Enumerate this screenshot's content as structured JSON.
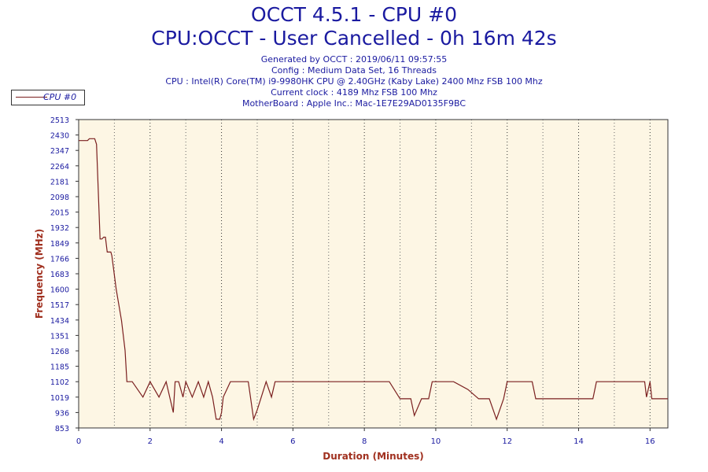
{
  "header": {
    "title": "OCCT 4.5.1 - CPU #0",
    "subtitle": "CPU:OCCT - User Cancelled - 0h 16m 42s",
    "info": [
      "Generated by OCCT : 2019/06/11 09:57:55",
      "Config : Medium Data Set, 16 Threads",
      "CPU : Intel(R) Core(TM) i9-9980HK CPU @ 2.40GHz (Kaby Lake) 2400 Mhz FSB 100 Mhz",
      "Current clock : 4189 Mhz FSB 100 Mhz",
      "MotherBoard : Apple Inc.: Mac-1E7E29AD0135F9BC"
    ]
  },
  "legend": {
    "label": "CPU #0",
    "color": "#7a1f1f"
  },
  "chart_data": {
    "type": "line",
    "xlabel": "Duration (Minutes)",
    "ylabel": "Frequency (MHz)",
    "xlim": [
      0,
      16.5
    ],
    "ylim": [
      853,
      2513
    ],
    "xticks": [
      0,
      2,
      4,
      6,
      8,
      10,
      12,
      14,
      16
    ],
    "yticks": [
      853,
      936,
      1019,
      1102,
      1185,
      1268,
      1351,
      1434,
      1517,
      1600,
      1683,
      1766,
      1849,
      1932,
      2015,
      2098,
      2181,
      2264,
      2347,
      2430,
      2513
    ],
    "grid": "vertical-dotted",
    "background": "#fdf6e4",
    "series": [
      {
        "name": "CPU #0",
        "color": "#7a1f1f",
        "x": [
          0.0,
          0.25,
          0.3,
          0.45,
          0.5,
          0.6,
          0.65,
          0.7,
          0.75,
          0.8,
          0.9,
          0.93,
          1.05,
          1.2,
          1.3,
          1.35,
          1.5,
          1.8,
          2.0,
          2.25,
          2.45,
          2.65,
          2.7,
          2.8,
          2.92,
          3.0,
          3.18,
          3.35,
          3.5,
          3.63,
          3.75,
          3.85,
          3.95,
          4.0,
          4.05,
          4.25,
          4.5,
          4.75,
          4.9,
          5.0,
          5.25,
          5.4,
          5.5,
          6.0,
          7.0,
          8.0,
          8.7,
          9.0,
          9.25,
          9.3,
          9.4,
          9.6,
          9.8,
          9.9,
          10.5,
          10.9,
          11.2,
          11.5,
          11.7,
          11.9,
          12.0,
          12.7,
          12.8,
          13.5,
          14.0,
          14.4,
          14.5,
          15.5,
          15.8,
          15.85,
          15.9,
          16.0,
          16.05,
          16.5
        ],
        "y": [
          2400,
          2400,
          2410,
          2410,
          2380,
          1870,
          1870,
          1880,
          1880,
          1800,
          1800,
          1780,
          1600,
          1430,
          1270,
          1102,
          1102,
          1019,
          1102,
          1019,
          1102,
          936,
          1102,
          1102,
          1019,
          1102,
          1019,
          1102,
          1019,
          1102,
          1019,
          900,
          900,
          936,
          1019,
          1102,
          1102,
          1102,
          900,
          950,
          1102,
          1019,
          1102,
          1102,
          1102,
          1102,
          1102,
          1010,
          1010,
          1010,
          920,
          1010,
          1010,
          1102,
          1102,
          1060,
          1010,
          1010,
          900,
          1010,
          1102,
          1102,
          1010,
          1010,
          1010,
          1010,
          1102,
          1102,
          1102,
          1102,
          1019,
          1102,
          1010,
          1010
        ]
      }
    ]
  }
}
